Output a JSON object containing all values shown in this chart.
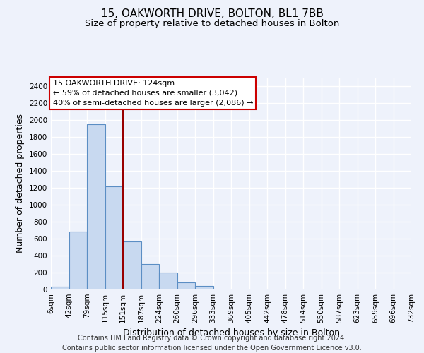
{
  "title": "15, OAKWORTH DRIVE, BOLTON, BL1 7BB",
  "subtitle": "Size of property relative to detached houses in Bolton",
  "xlabel": "Distribution of detached houses by size in Bolton",
  "ylabel": "Number of detached properties",
  "footnote": "Contains HM Land Registry data © Crown copyright and database right 2024.\nContains public sector information licensed under the Open Government Licence v3.0.",
  "bin_labels": [
    "6sqm",
    "42sqm",
    "79sqm",
    "115sqm",
    "151sqm",
    "187sqm",
    "224sqm",
    "260sqm",
    "296sqm",
    "333sqm",
    "369sqm",
    "405sqm",
    "442sqm",
    "478sqm",
    "514sqm",
    "550sqm",
    "587sqm",
    "623sqm",
    "659sqm",
    "696sqm",
    "732sqm"
  ],
  "bar_heights": [
    30,
    680,
    1950,
    1220,
    570,
    300,
    200,
    80,
    45,
    0,
    0,
    0,
    0,
    0,
    0,
    0,
    0,
    0,
    0,
    0
  ],
  "bar_color": "#c8d9f0",
  "bar_edge_color": "#5b8ec4",
  "vline_x_index": 3.5,
  "vline_color": "#990000",
  "annotation_box_text": "15 OAKWORTH DRIVE: 124sqm\n← 59% of detached houses are smaller (3,042)\n40% of semi-detached houses are larger (2,086) →",
  "annotation_box_color": "#ffffff",
  "annotation_box_edge_color": "#cc0000",
  "ylim": [
    0,
    2500
  ],
  "yticks": [
    0,
    200,
    400,
    600,
    800,
    1000,
    1200,
    1400,
    1600,
    1800,
    2000,
    2200,
    2400
  ],
  "bg_color": "#eef2fb",
  "grid_color": "#ffffff",
  "title_fontsize": 11,
  "subtitle_fontsize": 9.5,
  "xlabel_fontsize": 9,
  "ylabel_fontsize": 9,
  "tick_fontsize": 7.5,
  "footnote_fontsize": 7,
  "ann_fontsize": 8
}
